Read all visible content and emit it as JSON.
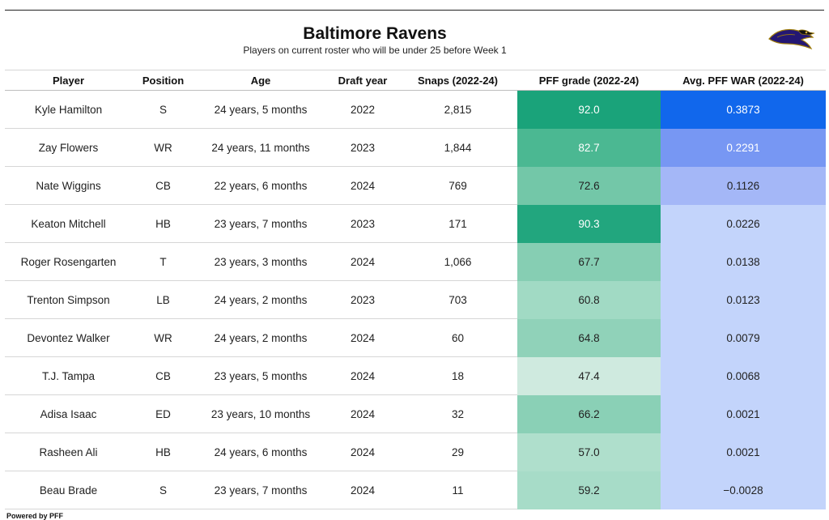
{
  "header": {
    "title": "Baltimore Ravens",
    "subtitle": "Players on current roster who will be under 25 before Week 1",
    "logo_icon": "ravens-logo-icon"
  },
  "table": {
    "columns": [
      "Player",
      "Position",
      "Age",
      "Draft year",
      "Snaps (2022-24)",
      "PFF grade (2022-24)",
      "Avg. PFF WAR (2022-24)"
    ],
    "rows": [
      {
        "player": "Kyle Hamilton",
        "position": "S",
        "age": "24 years, 5 months",
        "draft_year": "2022",
        "snaps": "2,815",
        "grade": "92.0",
        "war": "0.3873",
        "grade_color": "#1aa37a",
        "war_color": "#1167ec",
        "grade_text": "#ffffff",
        "war_text": "#ffffff"
      },
      {
        "player": "Zay Flowers",
        "position": "WR",
        "age": "24 years, 11 months",
        "draft_year": "2023",
        "snaps": "1,844",
        "grade": "82.7",
        "war": "0.2291",
        "grade_color": "#4bb892",
        "war_color": "#7797f3",
        "grade_text": "#ffffff",
        "war_text": "#ffffff"
      },
      {
        "player": "Nate Wiggins",
        "position": "CB",
        "age": "22 years, 6 months",
        "draft_year": "2024",
        "snaps": "769",
        "grade": "72.6",
        "war": "0.1126",
        "grade_color": "#73c7a8",
        "war_color": "#a4b7f7",
        "grade_text": "#222222",
        "war_text": "#222222"
      },
      {
        "player": "Keaton Mitchell",
        "position": "HB",
        "age": "23 years, 7 months",
        "draft_year": "2023",
        "snaps": "171",
        "grade": "90.3",
        "war": "0.0226",
        "grade_color": "#22a67e",
        "war_color": "#c3d4fb",
        "grade_text": "#ffffff",
        "war_text": "#222222"
      },
      {
        "player": "Roger Rosengarten",
        "position": "T",
        "age": "23 years, 3 months",
        "draft_year": "2024",
        "snaps": "1,066",
        "grade": "67.7",
        "war": "0.0138",
        "grade_color": "#86ceb3",
        "war_color": "#c3d4fb",
        "grade_text": "#222222",
        "war_text": "#222222"
      },
      {
        "player": "Trenton Simpson",
        "position": "LB",
        "age": "24 years, 2 months",
        "draft_year": "2023",
        "snaps": "703",
        "grade": "60.8",
        "war": "0.0123",
        "grade_color": "#a1dac4",
        "war_color": "#c3d4fb",
        "grade_text": "#222222",
        "war_text": "#222222"
      },
      {
        "player": "Devontez Walker",
        "position": "WR",
        "age": "24 years, 2 months",
        "draft_year": "2024",
        "snaps": "60",
        "grade": "64.8",
        "war": "0.0079",
        "grade_color": "#90d2b9",
        "war_color": "#c3d4fb",
        "grade_text": "#222222",
        "war_text": "#222222"
      },
      {
        "player": "T.J. Tampa",
        "position": "CB",
        "age": "23 years, 5 months",
        "draft_year": "2024",
        "snaps": "18",
        "grade": "47.4",
        "war": "0.0068",
        "grade_color": "#cfeadf",
        "war_color": "#c3d4fb",
        "grade_text": "#222222",
        "war_text": "#222222"
      },
      {
        "player": "Adisa Isaac",
        "position": "ED",
        "age": "23 years, 10 months",
        "draft_year": "2024",
        "snaps": "32",
        "grade": "66.2",
        "war": "0.0021",
        "grade_color": "#8ad0b6",
        "war_color": "#c3d4fb",
        "grade_text": "#222222",
        "war_text": "#222222"
      },
      {
        "player": "Rasheen Ali",
        "position": "HB",
        "age": "24 years, 6 months",
        "draft_year": "2024",
        "snaps": "29",
        "grade": "57.0",
        "war": "0.0021",
        "grade_color": "#afdfcc",
        "war_color": "#c3d4fb",
        "grade_text": "#222222",
        "war_text": "#222222"
      },
      {
        "player": "Beau Brade",
        "position": "S",
        "age": "23 years, 7 months",
        "draft_year": "2024",
        "snaps": "11",
        "grade": "59.2",
        "war": "−0.0028",
        "grade_color": "#a7dcc8",
        "war_color": "#c3d4fb",
        "grade_text": "#222222",
        "war_text": "#222222"
      }
    ]
  },
  "footer": {
    "credit": "Powered by PFF"
  }
}
